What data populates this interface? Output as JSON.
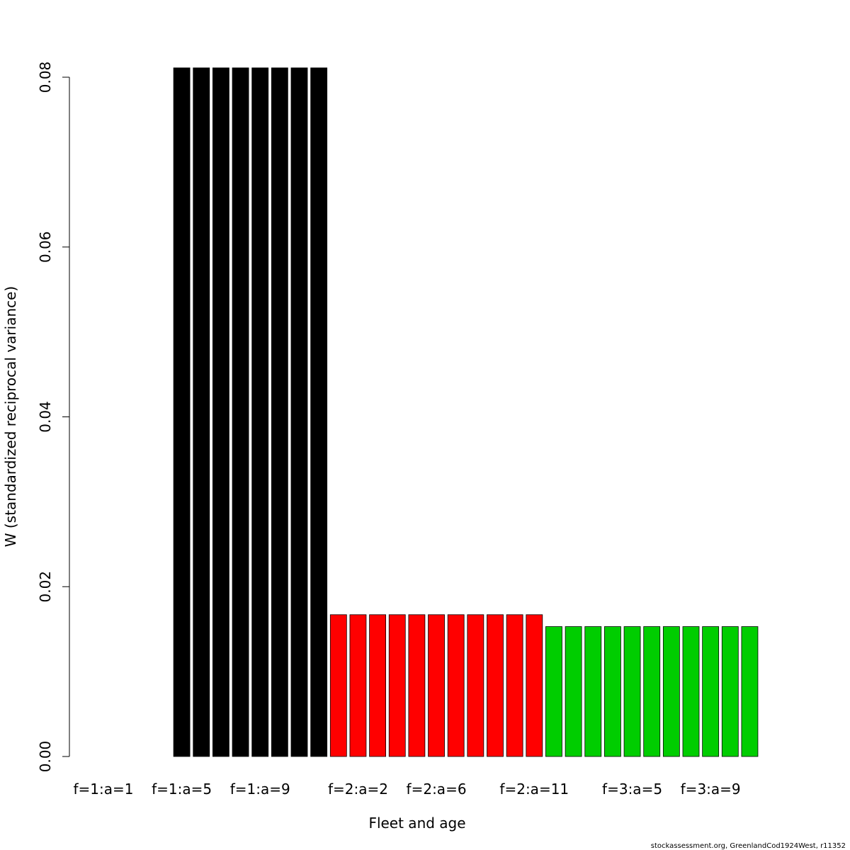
{
  "chart_data": {
    "type": "bar",
    "title": "",
    "xlabel": "Fleet and age",
    "ylabel": "W (standardized reciprocal variance)",
    "ylim": [
      0,
      0.08
    ],
    "yticks": [
      "0.00",
      "0.02",
      "0.04",
      "0.06",
      "0.08"
    ],
    "categories": [
      "f=1:a=1",
      "f=1:a=2",
      "f=1:a=3",
      "f=1:a=4",
      "f=1:a=5",
      "f=1:a=6",
      "f=1:a=7",
      "f=1:a=8",
      "f=1:a=9",
      "f=1:a=10",
      "f=1:a=11",
      "f=1:a=12",
      "f=2:a=1",
      "f=2:a=2",
      "f=2:a=3",
      "f=2:a=4",
      "f=2:a=5",
      "f=2:a=6",
      "f=2:a=7",
      "f=2:a=8",
      "f=2:a=9",
      "f=2:a=10",
      "f=2:a=11",
      "f=3:a=1",
      "f=3:a=2",
      "f=3:a=3",
      "f=3:a=4",
      "f=3:a=5",
      "f=3:a=6",
      "f=3:a=7",
      "f=3:a=8",
      "f=3:a=9",
      "f=3:a=10",
      "f=3:a=11"
    ],
    "values": [
      0,
      0,
      0,
      0,
      0.0811,
      0.0811,
      0.0811,
      0.0811,
      0.0811,
      0.0811,
      0.0811,
      0.0811,
      0.0167,
      0.0167,
      0.0167,
      0.0167,
      0.0167,
      0.0167,
      0.0167,
      0.0167,
      0.0167,
      0.0167,
      0.0167,
      0.0153,
      0.0153,
      0.0153,
      0.0153,
      0.0153,
      0.0153,
      0.0153,
      0.0153,
      0.0153,
      0.0153,
      0.0153
    ],
    "fleet_colors": {
      "1": "#000000",
      "2": "#ff0000",
      "3": "#00cd00"
    },
    "xtick_labels_shown": [
      "f=1:a=1",
      "f=1:a=5",
      "f=1:a=9",
      "f=2:a=2",
      "f=2:a=6",
      "f=2:a=11",
      "f=3:a=5",
      "f=3:a=9"
    ],
    "grid": false,
    "legend": "none"
  },
  "footer": {
    "credit": "stockassessment.org, GreenlandCod1924West, r11352"
  }
}
